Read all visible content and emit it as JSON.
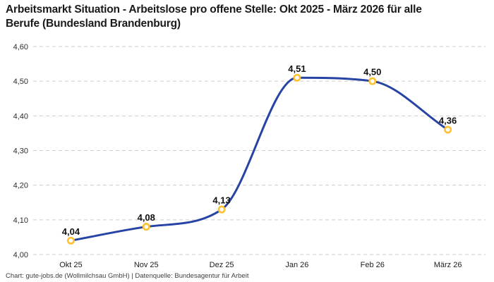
{
  "header": {
    "title": "Arbeitsmarkt Situation - Arbeitslose pro offene Stelle: Okt 2025 - März 2026 für alle Berufe (Bundesland Brandenburg)"
  },
  "footer": {
    "credit": "Chart: gute-jobs.de (Wollmilchsau GmbH) | Datenquelle: Bundesagentur für Arbeit"
  },
  "chart_data": {
    "type": "line",
    "title": "Arbeitsmarkt Situation - Arbeitslose pro offene Stelle: Okt 2025 - März 2026 für alle Berufe (Bundesland Brandenburg)",
    "categories": [
      "Okt 25",
      "Nov 25",
      "Dez 25",
      "Jan 26",
      "Feb 26",
      "März 26"
    ],
    "values": [
      4.04,
      4.08,
      4.13,
      4.51,
      4.5,
      4.36
    ],
    "point_labels": [
      "4,04",
      "4,08",
      "4,13",
      "4,51",
      "4,50",
      "4,36"
    ],
    "ytick_labels": [
      "4,00",
      "4,10",
      "4,20",
      "4,30",
      "4,40",
      "4,50",
      "4,60"
    ],
    "ytick_values": [
      4.0,
      4.1,
      4.2,
      4.3,
      4.4,
      4.5,
      4.6
    ],
    "ylim": [
      4.0,
      4.6
    ],
    "xlabel": "",
    "ylabel": "",
    "grid": "dashed-horizontal",
    "legend": "none",
    "colors": {
      "line": "#2743a3",
      "point_ring": "#ffc12e",
      "point_fill": "#ffffff",
      "grid": "#cccccc",
      "tick_text": "#2e2e2e",
      "data_label": "#111111"
    }
  }
}
